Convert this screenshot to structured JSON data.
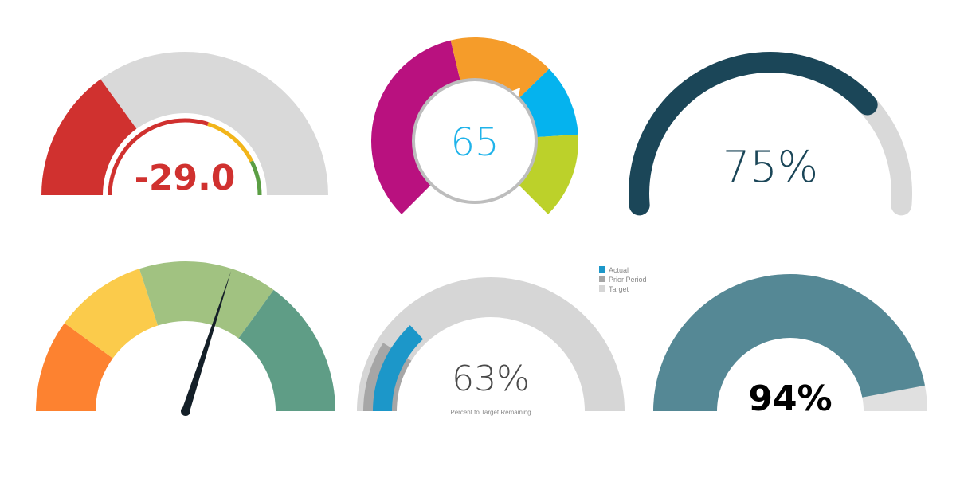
{
  "chart_data": [
    {
      "type": "gauge",
      "display_value": "-29.0",
      "value_color": "#d0312f",
      "range_segments": [
        {
          "color": "#d0312f",
          "value": 0.3
        },
        {
          "color": "#d9d9d9",
          "value": 0.7
        }
      ],
      "indicator_segments": [
        {
          "color": "#d0312f",
          "value": 0.6
        },
        {
          "color": "#f2b51a",
          "value": 0.25
        },
        {
          "color": "#5b9e44",
          "value": 0.15
        }
      ]
    },
    {
      "type": "gauge",
      "display_value": "65",
      "value_color": "#1fb3ea",
      "segments": [
        {
          "color": "#b9117f",
          "value": 45
        },
        {
          "color": "#f59c2a",
          "value": 22
        },
        {
          "color": "#05b3ee",
          "value": 15
        },
        {
          "color": "#bcd12a",
          "value": 18
        }
      ],
      "pointer_value": 65
    },
    {
      "type": "gauge",
      "display_value": "75%",
      "value_color": "#1b4658",
      "fill_color": "#1b4658",
      "track_color": "#d9d9d9",
      "value": 75
    },
    {
      "type": "gauge",
      "segments": [
        {
          "color": "#fd8230",
          "value": 20
        },
        {
          "color": "#fbcb4b",
          "value": 20
        },
        {
          "color": "#a1c281",
          "value": 30
        },
        {
          "color": "#5f9d86",
          "value": 30
        }
      ],
      "needle_value": 60,
      "needle_color": "#141f28"
    },
    {
      "type": "gauge",
      "display_value": "63%",
      "caption": "Percent to Target Remaining",
      "legend": [
        {
          "name": "Actual",
          "color": "#1c97c9"
        },
        {
          "name": "Prior Period",
          "color": "#a6a6a6"
        },
        {
          "name": "Target",
          "color": "#d6d6d6"
        }
      ],
      "target_value": 100,
      "prior_value": 18,
      "actual_value": 26
    },
    {
      "type": "gauge",
      "display_value": "94%",
      "value_color": "#000000",
      "fill_color": "#558895",
      "track_color": "#e0e0e0",
      "value": 94
    }
  ]
}
